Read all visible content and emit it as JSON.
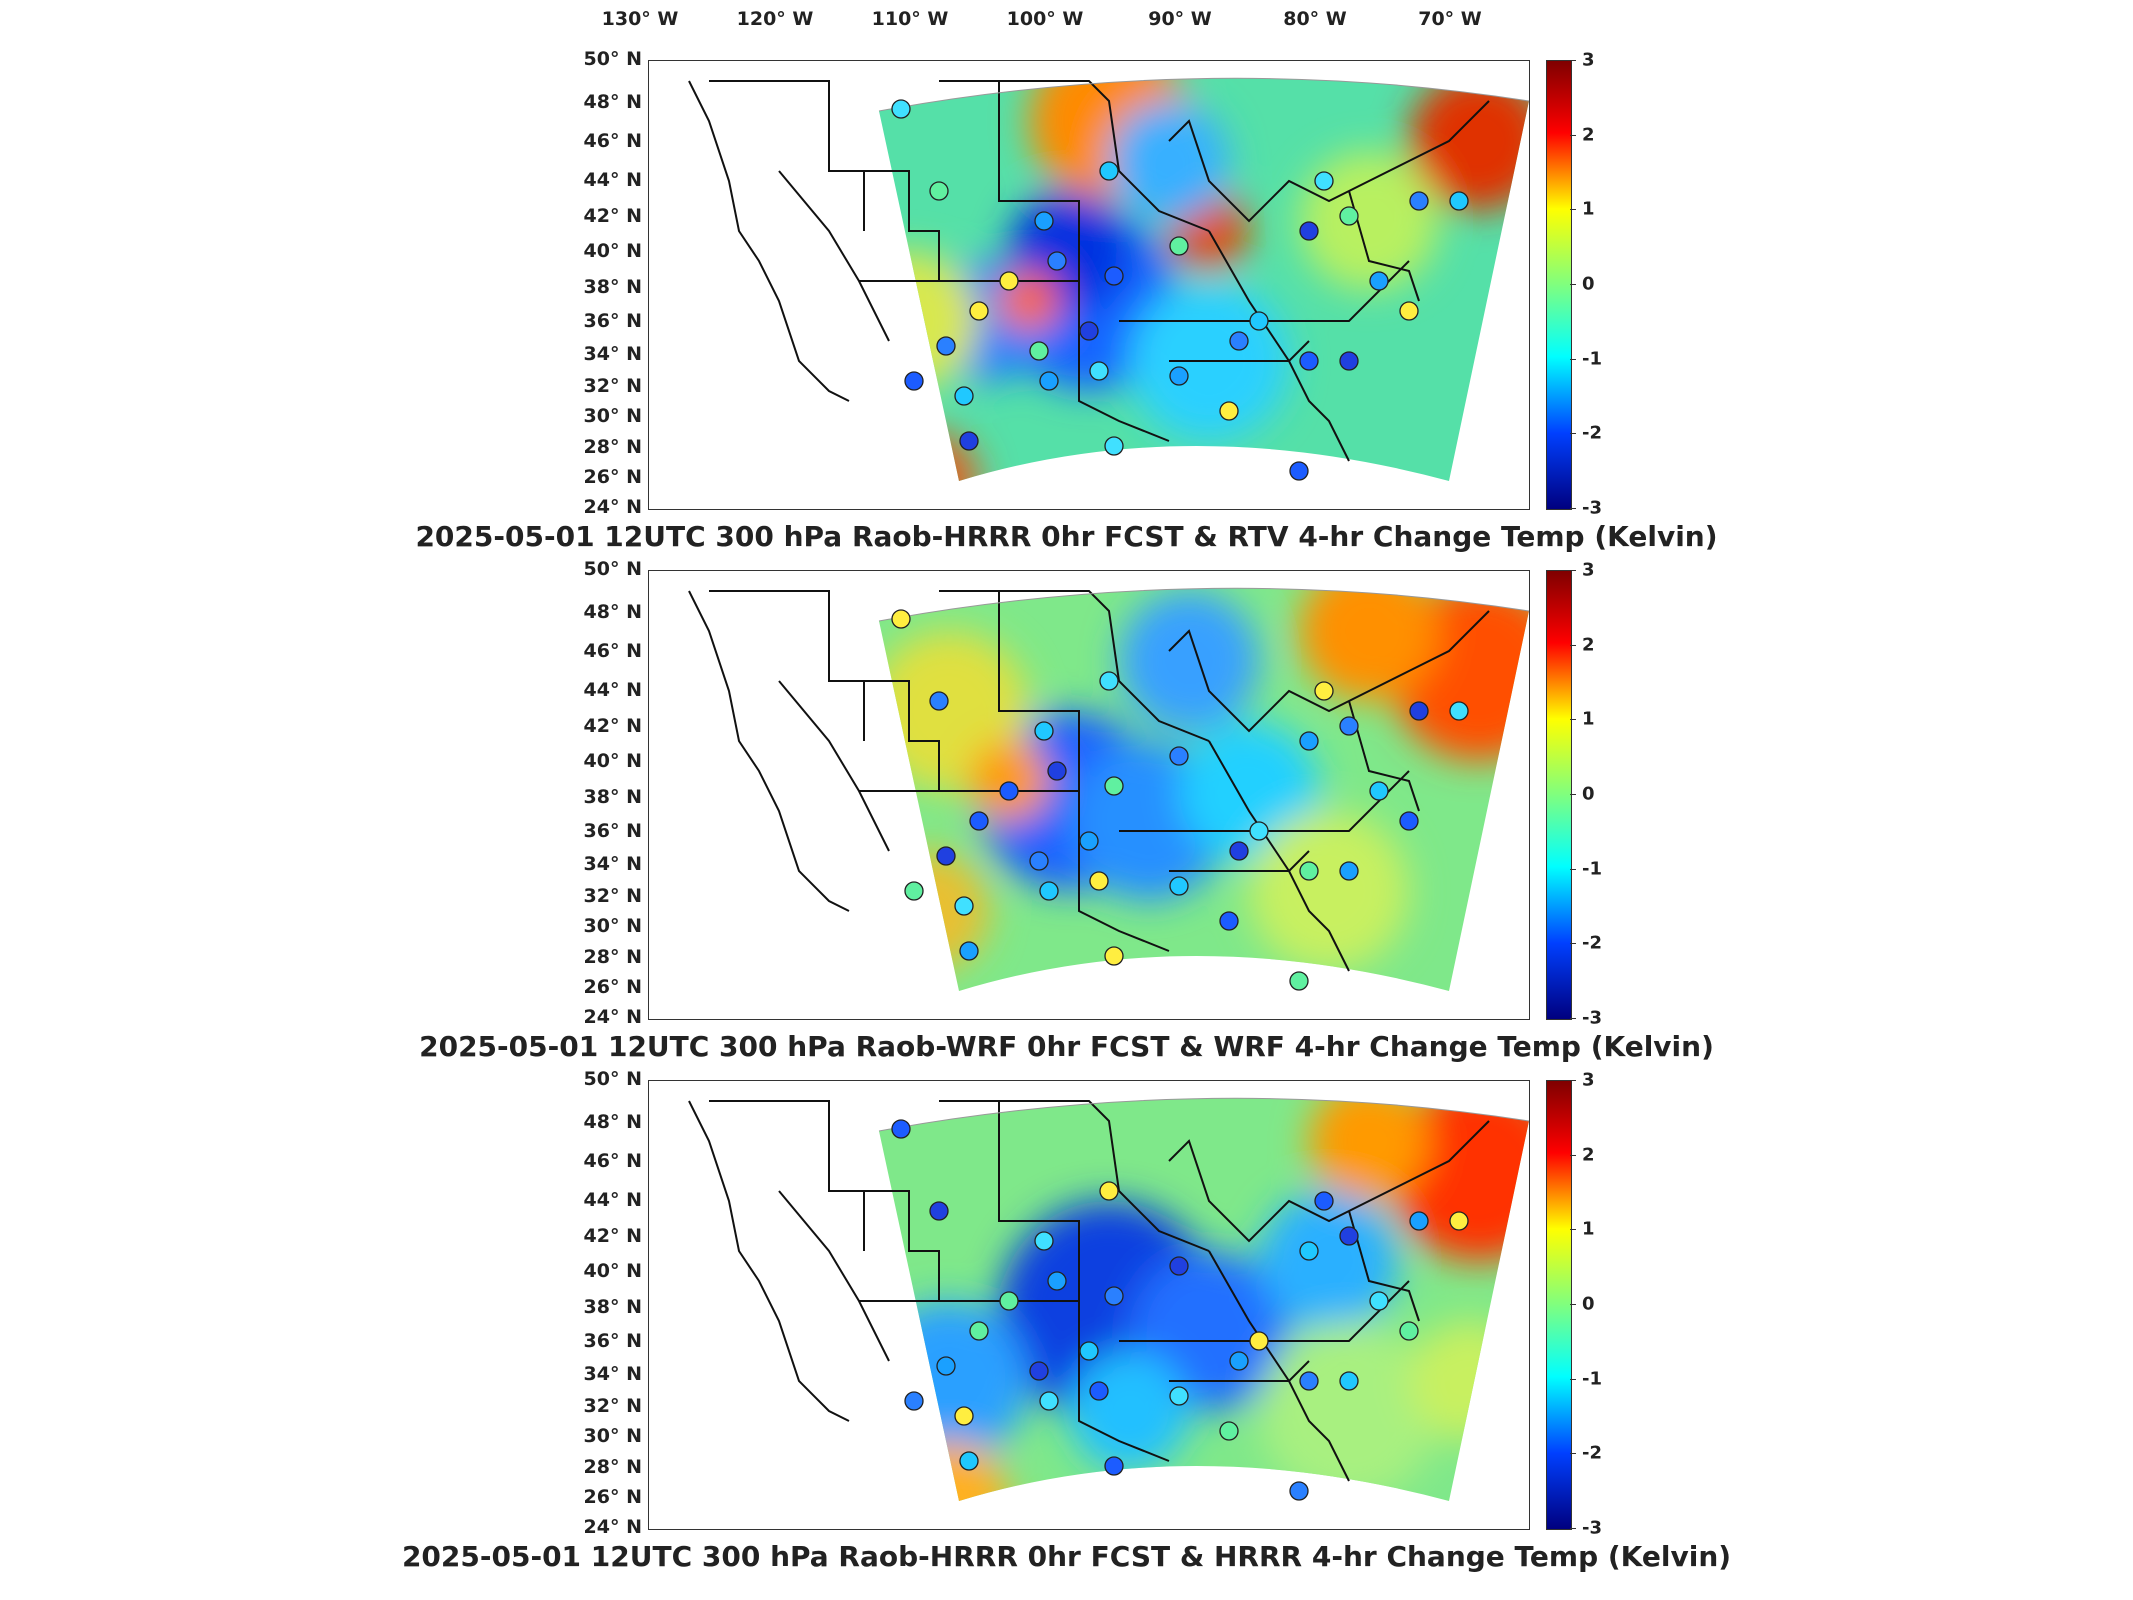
{
  "lon_labels": [
    "130° W",
    "120° W",
    "110° W",
    "100° W",
    "90° W",
    "80° W",
    "70° W"
  ],
  "lat_labels": [
    "50° N",
    "48° N",
    "46° N",
    "44° N",
    "42° N",
    "40° N",
    "38° N",
    "36° N",
    "34° N",
    "32° N",
    "30° N",
    "28° N",
    "26° N",
    "24° N"
  ],
  "colorbar": {
    "ticks": [
      "3",
      "2",
      "1",
      "0",
      "-1",
      "-2",
      "-3"
    ],
    "min": -3,
    "max": 3,
    "colormap": "jet"
  },
  "panels": [
    {
      "caption": "2025-05-01 12UTC 300 hPa Raob-HRRR 0hr FCST & RTV 4-hr Change Temp (Kelvin)"
    },
    {
      "caption": "2025-05-01 12UTC 300 hPa Raob-WRF 0hr FCST & WRF 4-hr Change Temp (Kelvin)"
    },
    {
      "caption": "2025-05-01 12UTC 300 hPa Raob-HRRR 0hr FCST & HRRR 4-hr Change Temp (Kelvin)"
    }
  ],
  "colors": {
    "warm": "#ff3000",
    "cool": "#0030ff",
    "neutral": "#7fff7f",
    "background": "#ffffff"
  }
}
